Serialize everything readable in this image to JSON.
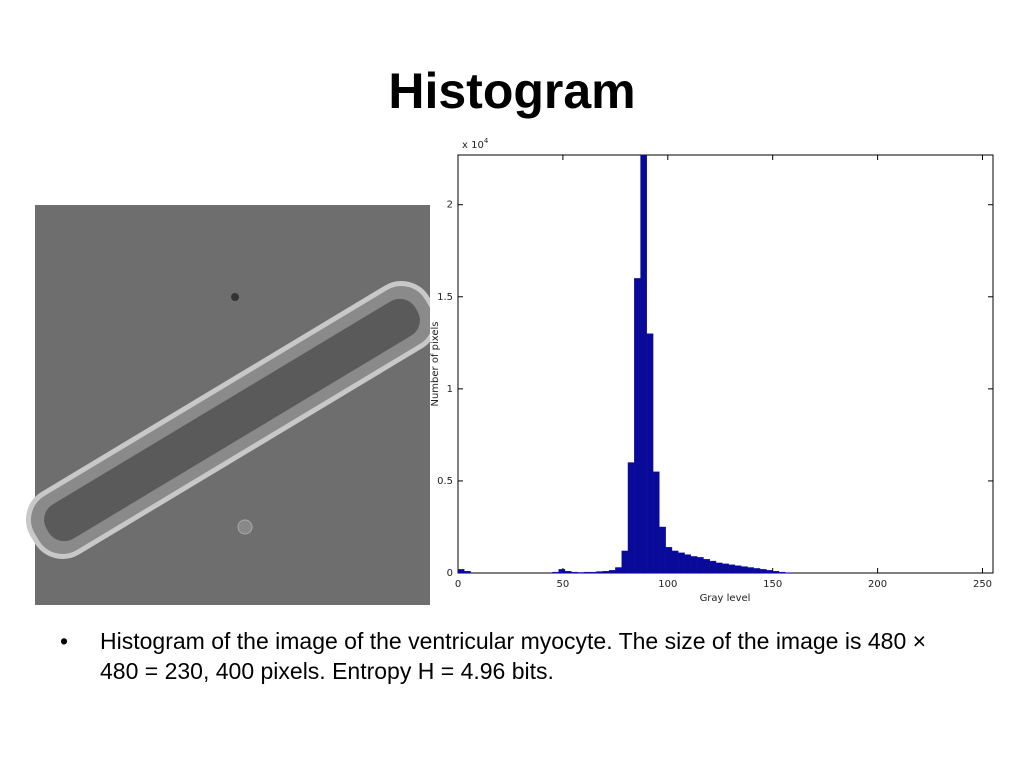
{
  "header": {
    "title": "Histogram"
  },
  "chart_data": {
    "type": "histogram",
    "x_label": "Gray level",
    "y_label": "Number of pixels",
    "y_multiplier": "x 10",
    "y_multiplier_exponent": "4",
    "color": "#0a0a9a",
    "bins": [
      0,
      3,
      6,
      9,
      12,
      15,
      18,
      21,
      24,
      27,
      30,
      33,
      36,
      39,
      42,
      45,
      48,
      51,
      54,
      57,
      60,
      63,
      66,
      69,
      72,
      75,
      78,
      81,
      84,
      87,
      90,
      93,
      96,
      99,
      102,
      105,
      108,
      111,
      114,
      117,
      120,
      123,
      126,
      129,
      132,
      135,
      138,
      141,
      144,
      147,
      150,
      153,
      156,
      159,
      162,
      165,
      168,
      171,
      174,
      177,
      180,
      183,
      186,
      189,
      192,
      195,
      198,
      201,
      204,
      207,
      210,
      213,
      216,
      219,
      222,
      225,
      228,
      231,
      234,
      237,
      240,
      243,
      246,
      249,
      252,
      255
    ],
    "values": [
      0.02,
      0.01,
      0,
      0,
      0,
      0,
      0,
      0,
      0,
      0,
      0,
      0,
      0,
      0,
      0,
      0.005,
      0.02,
      0.01,
      0.005,
      0.003,
      0.005,
      0.005,
      0.008,
      0.01,
      0.015,
      0.03,
      0.12,
      0.6,
      1.6,
      2.27,
      1.3,
      0.55,
      0.25,
      0.14,
      0.12,
      0.11,
      0.1,
      0.09,
      0.085,
      0.075,
      0.065,
      0.055,
      0.05,
      0.045,
      0.04,
      0.035,
      0.03,
      0.025,
      0.02,
      0.015,
      0.01,
      0.005,
      0.002,
      0,
      0,
      0,
      0,
      0,
      0,
      0,
      0,
      0,
      0,
      0,
      0,
      0,
      0,
      0,
      0,
      0,
      0,
      0,
      0,
      0,
      0,
      0,
      0,
      0,
      0,
      0,
      0,
      0,
      0,
      0,
      0
    ],
    "xlim": [
      0,
      255
    ],
    "ylim": [
      0,
      2.27
    ],
    "xticks": [
      0,
      50,
      100,
      150,
      200,
      250
    ],
    "yticks": [
      0,
      0.5,
      1,
      1.5,
      2
    ],
    "grid": false
  },
  "body": {
    "bullets": [
      "Histogram of the image of the ventricular myocyte. The size of the image is 480 × 480 = 230, 400 pixels. Entropy H = 4.96 bits."
    ]
  }
}
